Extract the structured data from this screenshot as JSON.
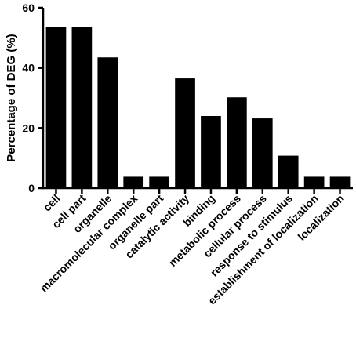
{
  "chart_data": {
    "type": "bar",
    "title": "",
    "xlabel": "",
    "ylabel": "Percentage of DEG (%)",
    "ylim": [
      0,
      60
    ],
    "yticks": [
      0,
      20,
      40,
      60
    ],
    "grid": false,
    "bar_color": "#000000",
    "categories": [
      "cell",
      "cell part",
      "organelle",
      "macromolecular complex",
      "organelle part",
      "catalytic activity",
      "binding",
      "metabolic process",
      "cellular process",
      "response to stimulus",
      "establishment of localization",
      "localization"
    ],
    "values": [
      53.5,
      53.5,
      43.5,
      3.8,
      3.8,
      36.5,
      24,
      30.2,
      23.2,
      10.8,
      3.8,
      3.8
    ]
  }
}
